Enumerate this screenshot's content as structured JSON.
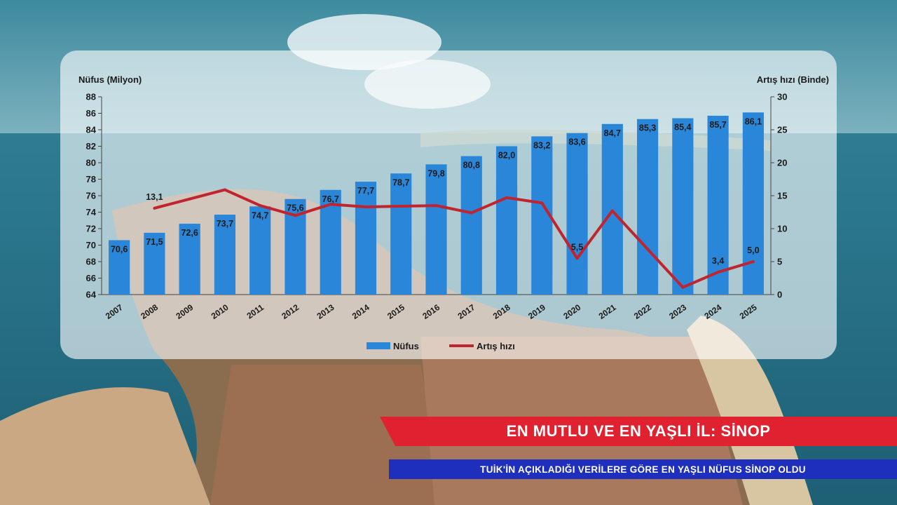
{
  "banner": {
    "headline": "EN MUTLU VE EN YAŞLI İL: SİNOP",
    "subheadline": "TUİK'İN AÇIKLADIĞI VERİLERE GÖRE EN YAŞLI NÜFUS SİNOP OLDU"
  },
  "colors": {
    "bar": "#2a86d8",
    "line": "#c0242f",
    "banner_red": "#e0212f",
    "banner_blue": "#1f2fbd"
  },
  "chart_data": {
    "type": "bar",
    "ylabel_left": "Nüfus (Milyon)",
    "ylabel_right": "Artış hızı (Binde)",
    "ylim_left": [
      64,
      88
    ],
    "yticks_left": [
      "64",
      "66",
      "68",
      "70",
      "72",
      "74",
      "76",
      "78",
      "80",
      "82",
      "84",
      "86",
      "88"
    ],
    "ylim_right": [
      0,
      30
    ],
    "yticks_right": [
      "0",
      "5",
      "10",
      "15",
      "20",
      "25",
      "30"
    ],
    "categories": [
      "2007",
      "2008",
      "2009",
      "2010",
      "2011",
      "2012",
      "2013",
      "2014",
      "2015",
      "2016",
      "2017",
      "2018",
      "2019",
      "2020",
      "2021",
      "2022",
      "2023",
      "2024",
      "2025"
    ],
    "series": [
      {
        "name": "Nüfus",
        "type": "bar",
        "axis": "left",
        "values": [
          70.6,
          71.5,
          72.6,
          73.7,
          74.7,
          75.6,
          76.7,
          77.7,
          78.7,
          79.8,
          80.8,
          82.0,
          83.2,
          83.6,
          84.7,
          85.3,
          85.4,
          85.7,
          86.1
        ],
        "labels": [
          "70,6",
          "71,5",
          "72,6",
          "73,7",
          "74,7",
          "75,6",
          "76,7",
          "77,7",
          "78,7",
          "79,8",
          "80,8",
          "82,0",
          "83,2",
          "83,6",
          "84,7",
          "85,3",
          "85,4",
          "85,7",
          "86,1"
        ]
      },
      {
        "name": "Artış hızı",
        "type": "line",
        "axis": "right",
        "values": [
          null,
          13.1,
          14.5,
          15.9,
          13.5,
          12.0,
          13.7,
          13.3,
          13.4,
          13.5,
          12.4,
          14.7,
          13.9,
          5.5,
          12.7,
          6.9,
          1.1,
          3.4,
          5.0
        ],
        "labels": [
          null,
          "13,1",
          null,
          null,
          null,
          null,
          null,
          null,
          null,
          null,
          null,
          null,
          null,
          "5,5",
          null,
          null,
          null,
          "3,4",
          "5,0"
        ]
      }
    ],
    "legend_position": "bottom",
    "grid": false
  }
}
